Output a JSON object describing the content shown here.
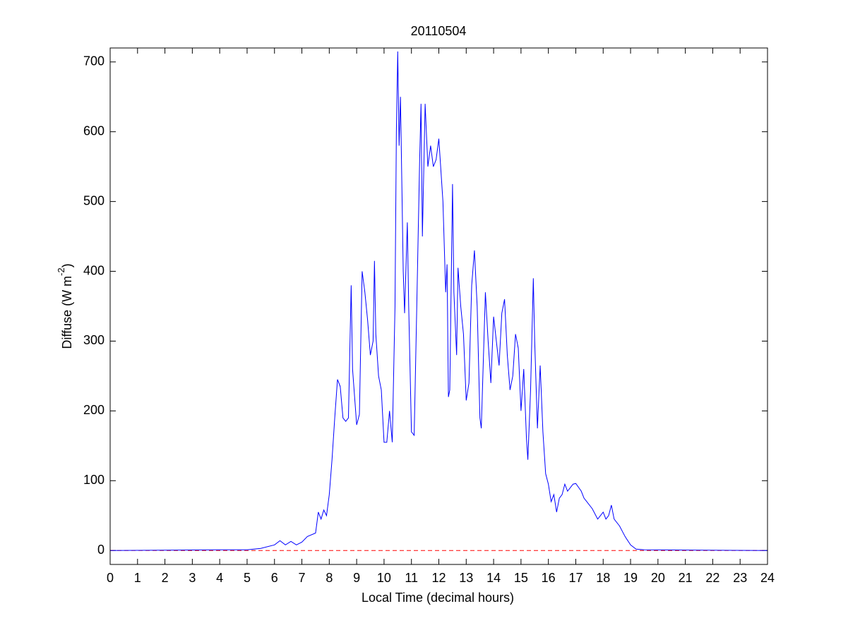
{
  "chart_data": {
    "type": "line",
    "title": "20110504",
    "xlabel": "Local Time (decimal hours)",
    "ylabel": {
      "text": "Diffuse (W m",
      "superscript": "-2",
      "suffix": ")"
    },
    "xlim": [
      0,
      24
    ],
    "ylim": [
      -20,
      720
    ],
    "xticks": [
      0,
      1,
      2,
      3,
      4,
      5,
      6,
      7,
      8,
      9,
      10,
      11,
      12,
      13,
      14,
      15,
      16,
      17,
      18,
      19,
      20,
      21,
      22,
      23,
      24
    ],
    "yticks": [
      0,
      100,
      200,
      300,
      400,
      500,
      600,
      700
    ],
    "reference_line": {
      "value": 0,
      "color": "#ff0000",
      "style": "dashed"
    },
    "x": [
      0,
      4,
      5,
      5.5,
      6,
      6.2,
      6.4,
      6.6,
      6.8,
      7,
      7.2,
      7.5,
      7.6,
      7.7,
      7.8,
      7.9,
      8,
      8.1,
      8.2,
      8.3,
      8.4,
      8.5,
      8.6,
      8.7,
      8.8,
      8.85,
      9,
      9.1,
      9.2,
      9.3,
      9.4,
      9.5,
      9.6,
      9.65,
      9.7,
      9.8,
      9.9,
      10,
      10.1,
      10.2,
      10.3,
      10.4,
      10.45,
      10.5,
      10.55,
      10.6,
      10.7,
      10.75,
      10.85,
      10.9,
      11,
      11.1,
      11.2,
      11.3,
      11.35,
      11.4,
      11.5,
      11.6,
      11.7,
      11.8,
      11.9,
      12,
      12.1,
      12.15,
      12.25,
      12.3,
      12.35,
      12.4,
      12.5,
      12.55,
      12.65,
      12.7,
      12.8,
      12.9,
      13,
      13.1,
      13.2,
      13.3,
      13.4,
      13.5,
      13.55,
      13.7,
      13.8,
      13.9,
      14,
      14.1,
      14.2,
      14.3,
      14.4,
      14.5,
      14.6,
      14.7,
      14.8,
      14.9,
      15,
      15.1,
      15.2,
      15.25,
      15.35,
      15.45,
      15.5,
      15.6,
      15.7,
      15.8,
      15.9,
      16,
      16.1,
      16.2,
      16.3,
      16.4,
      16.5,
      16.6,
      16.7,
      16.8,
      16.9,
      17,
      17.2,
      17.3,
      17.4,
      17.6,
      17.8,
      17.9,
      18,
      18.1,
      18.2,
      18.3,
      18.4,
      18.6,
      18.8,
      19,
      19.2,
      19.5,
      24
    ],
    "series": [
      {
        "color": "#0000ff",
        "values": [
          0,
          1,
          1,
          3,
          8,
          14,
          8,
          13,
          8,
          12,
          20,
          25,
          55,
          45,
          58,
          50,
          80,
          130,
          190,
          245,
          235,
          190,
          185,
          190,
          380,
          260,
          180,
          195,
          400,
          370,
          330,
          280,
          300,
          415,
          310,
          250,
          230,
          155,
          155,
          200,
          155,
          350,
          600,
          715,
          580,
          650,
          400,
          340,
          470,
          350,
          170,
          165,
          360,
          560,
          640,
          450,
          640,
          550,
          580,
          550,
          560,
          590,
          530,
          500,
          370,
          410,
          220,
          230,
          525,
          370,
          280,
          405,
          350,
          310,
          215,
          240,
          380,
          430,
          350,
          190,
          175,
          370,
          300,
          240,
          335,
          300,
          265,
          340,
          360,
          280,
          230,
          250,
          310,
          290,
          200,
          260,
          160,
          130,
          230,
          390,
          300,
          175,
          265,
          170,
          110,
          95,
          70,
          80,
          55,
          75,
          80,
          95,
          85,
          90,
          95,
          96,
          85,
          75,
          70,
          60,
          45,
          50,
          55,
          45,
          50,
          65,
          45,
          35,
          20,
          8,
          2,
          1,
          0
        ]
      }
    ]
  }
}
